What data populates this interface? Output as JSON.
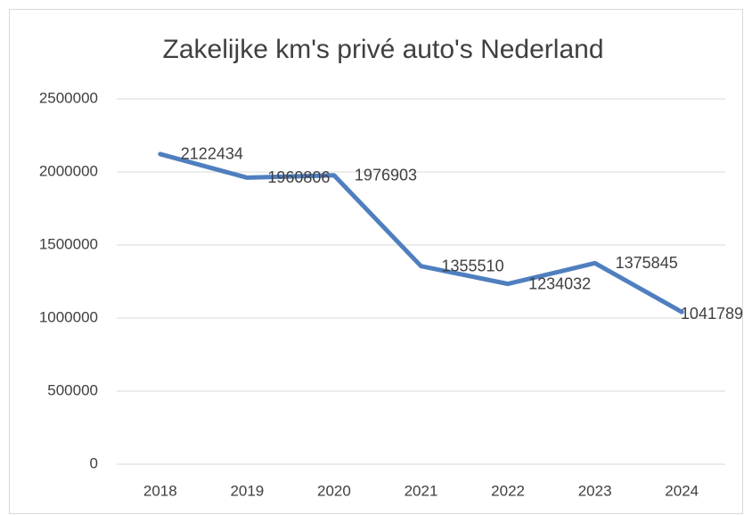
{
  "chart_data": {
    "type": "line",
    "title": "Zakelijke km's privé auto's Nederland",
    "categories": [
      "2018",
      "2019",
      "2020",
      "2021",
      "2022",
      "2023",
      "2024"
    ],
    "values": [
      2122434,
      1960806,
      1976903,
      1355510,
      1234032,
      1375845,
      1041789
    ],
    "color": "#4f7fbf",
    "ylim": [
      0,
      2500000
    ],
    "yticks": [
      0,
      500000,
      1000000,
      1500000,
      2000000,
      2500000
    ],
    "grid": true,
    "data_labels": true
  }
}
